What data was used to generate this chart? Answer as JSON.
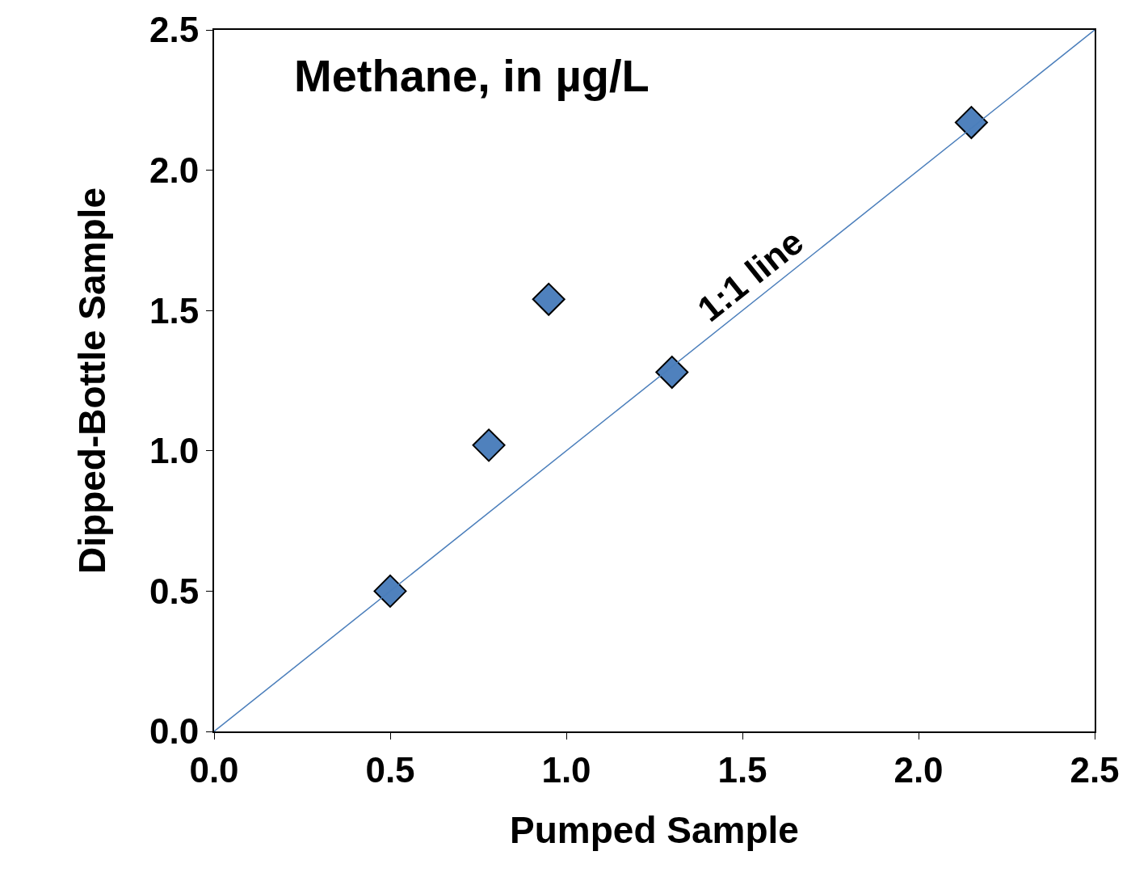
{
  "chart_data": {
    "type": "scatter",
    "title": "Methane, in µg/L",
    "xlabel": "Pumped Sample",
    "ylabel": "Dipped-Bottle Sample",
    "series": [
      {
        "type": "scatter",
        "color": "#4f81bd",
        "x": [
          0.5,
          0.78,
          0.95,
          1.3,
          2.15
        ],
        "values": [
          0.5,
          1.02,
          1.54,
          1.28,
          2.17
        ],
        "marker": "diamond"
      },
      {
        "type": "line",
        "color": "#4a7ebb",
        "x": [
          0,
          2.5
        ],
        "values": [
          0,
          2.5
        ],
        "marker": "none",
        "line_style": "solid"
      }
    ],
    "annotations": [
      "1:1 line"
    ],
    "xlim": [
      0,
      2.5
    ],
    "ylim": [
      0,
      2.5
    ],
    "xticks": [
      {
        "value": 0,
        "label": "0.0"
      },
      0.5,
      {
        "value": 1,
        "label": "1.0"
      },
      1.5,
      {
        "value": 2,
        "label": "2.0"
      },
      2.5
    ],
    "yticks": [
      {
        "value": 0,
        "label": "0.0"
      },
      0.5,
      {
        "value": 1,
        "label": "1.0"
      },
      1.5,
      {
        "value": 2,
        "label": "2.0"
      },
      2.5
    ]
  }
}
